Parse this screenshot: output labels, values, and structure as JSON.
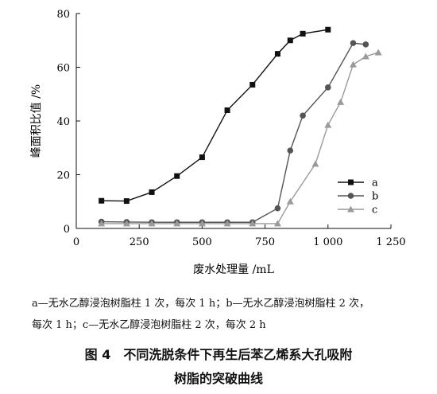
{
  "chart_data": {
    "type": "line",
    "xlabel": "废水处理量 /mL",
    "ylabel": "峰面积比值 /%",
    "xlim": [
      0,
      1250
    ],
    "ylim": [
      0,
      80
    ],
    "x_ticks": [
      0,
      250,
      500,
      750,
      1000,
      1250
    ],
    "x_tick_labels": [
      "0",
      "250",
      "500",
      "750",
      "1 000",
      "1 250"
    ],
    "y_ticks": [
      0,
      20,
      40,
      60,
      80
    ],
    "y_tick_labels": [
      "0",
      "20",
      "40",
      "60",
      "80"
    ],
    "grid": false,
    "legend_position": "right",
    "series": [
      {
        "name": "a",
        "color": "#111111",
        "marker": "square",
        "x": [
          100,
          200,
          300,
          400,
          500,
          600,
          700,
          800,
          850,
          900,
          1000
        ],
        "y": [
          10.3,
          10.2,
          13.5,
          19.5,
          26.5,
          44,
          53.5,
          65,
          70,
          72.5,
          74
        ]
      },
      {
        "name": "b",
        "color": "#555555",
        "marker": "circle",
        "x": [
          100,
          200,
          300,
          400,
          500,
          600,
          700,
          800,
          850,
          900,
          1000,
          1100,
          1150
        ],
        "y": [
          2.5,
          2.4,
          2.3,
          2.3,
          2.3,
          2.3,
          2.3,
          7.5,
          29,
          42,
          52.5,
          69,
          68.5
        ]
      },
      {
        "name": "c",
        "color": "#9a9a9a",
        "marker": "triangle",
        "x": [
          100,
          200,
          300,
          400,
          500,
          600,
          700,
          800,
          850,
          950,
          1000,
          1050,
          1100,
          1150,
          1200
        ],
        "y": [
          1.8,
          1.8,
          1.8,
          1.8,
          1.8,
          1.8,
          1.8,
          1.8,
          10,
          24,
          38.5,
          47,
          61,
          64,
          65.5
        ]
      }
    ]
  },
  "notes": {
    "line1": "a—无水乙醇浸泡树脂柱 1 次，每次 1 h；b—无水乙醇浸泡树脂柱 2 次，",
    "line2": "每次 1 h；c—无水乙醇浸泡树脂柱 2 次，每次 2 h"
  },
  "caption": {
    "line1": "图 4　不同洗脱条件下再生后苯乙烯系大孔吸附",
    "line2": "树脂的突破曲线"
  }
}
